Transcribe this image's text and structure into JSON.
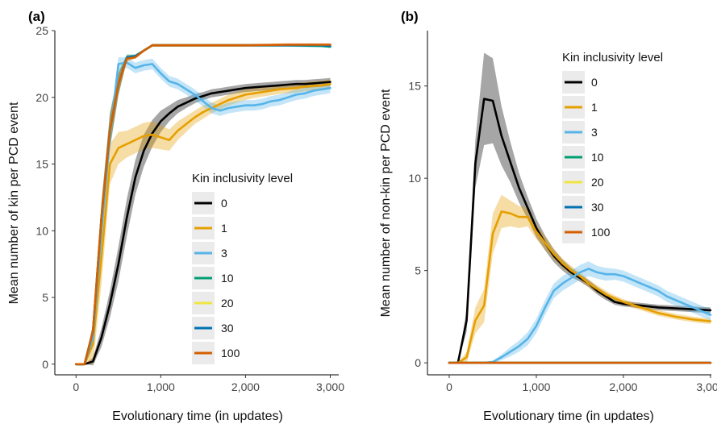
{
  "chart_data": [
    {
      "panel": "(a)",
      "type": "line",
      "xlabel": "Evolutionary time (in updates)",
      "ylabel": "Mean number of kin per PCD event",
      "xlim": [
        -250,
        3100
      ],
      "ylim": [
        -0.8,
        25
      ],
      "xticks": [
        0,
        1000,
        2000,
        3000
      ],
      "xtick_labels": [
        "0",
        "1,000",
        "2,000",
        "3,000"
      ],
      "yticks": [
        0,
        5,
        10,
        15,
        20,
        25
      ],
      "ytick_labels": [
        "0",
        "5",
        "10",
        "15",
        "20",
        "25"
      ],
      "legend": {
        "title": "Kin inclusivity level",
        "placement": "center-right"
      },
      "grid": false,
      "series": [
        {
          "name": "0",
          "color": "#000000",
          "x": [
            0,
            100,
            200,
            300,
            400,
            500,
            600,
            700,
            800,
            900,
            1000,
            1100,
            1200,
            1300,
            1400,
            1500,
            1600,
            1700,
            1800,
            1900,
            2000,
            2100,
            2200,
            2300,
            2400,
            2500,
            2600,
            2700,
            2800,
            2900,
            3000
          ],
          "y": [
            0,
            0,
            0.2,
            2,
            4.5,
            7.5,
            11,
            14,
            16,
            17.3,
            18.2,
            18.8,
            19.3,
            19.6,
            19.9,
            20.1,
            20.3,
            20.4,
            20.5,
            20.6,
            20.7,
            20.75,
            20.8,
            20.85,
            20.9,
            20.95,
            21,
            21,
            21.05,
            21.1,
            21.15
          ],
          "band": [
            0,
            0,
            0.3,
            0.7,
            1,
            1.3,
            1.4,
            1.3,
            1.2,
            1,
            0.8,
            0.6,
            0.5,
            0.4,
            0.35,
            0.3,
            0.3,
            0.3,
            0.3,
            0.3,
            0.3,
            0.3,
            0.3,
            0.3,
            0.3,
            0.3,
            0.3,
            0.3,
            0.3,
            0.3,
            0.3
          ]
        },
        {
          "name": "1",
          "color": "#E69F00",
          "x": [
            0,
            100,
            200,
            300,
            400,
            500,
            600,
            700,
            800,
            900,
            1000,
            1100,
            1200,
            1300,
            1400,
            1500,
            1600,
            1700,
            1800,
            1900,
            2000,
            2100,
            2200,
            2300,
            2400,
            2500,
            2600,
            2700,
            2800,
            2900,
            3000
          ],
          "y": [
            0,
            0,
            1.5,
            8,
            15,
            16.2,
            16.5,
            16.8,
            17.1,
            17.2,
            17,
            16.8,
            17.5,
            18,
            18.5,
            18.9,
            19.2,
            19.5,
            19.8,
            20,
            20.2,
            20.3,
            20.4,
            20.5,
            20.6,
            20.65,
            20.7,
            20.8,
            20.85,
            20.9,
            21
          ],
          "band": [
            0,
            0,
            1.5,
            2,
            1.5,
            1.2,
            1,
            1,
            1,
            1,
            0.9,
            0.8,
            0.7,
            0.6,
            0.5,
            0.5,
            0.4,
            0.4,
            0.4,
            0.4,
            0.4,
            0.35,
            0.35,
            0.35,
            0.35,
            0.35,
            0.35,
            0.35,
            0.35,
            0.35,
            0.35
          ]
        },
        {
          "name": "3",
          "color": "#56B4E9",
          "x": [
            0,
            100,
            200,
            300,
            400,
            500,
            600,
            700,
            800,
            900,
            1000,
            1100,
            1200,
            1300,
            1400,
            1500,
            1600,
            1700,
            1800,
            1900,
            2000,
            2100,
            2200,
            2300,
            2400,
            2500,
            2600,
            2700,
            2800,
            2900,
            3000
          ],
          "y": [
            0,
            0,
            2,
            10,
            17,
            22.5,
            22.6,
            22.2,
            22.4,
            22.5,
            21.8,
            21.2,
            21,
            20.6,
            20.2,
            19.7,
            19.2,
            19,
            19.2,
            19.3,
            19.4,
            19.4,
            19.5,
            19.7,
            19.8,
            20,
            20.2,
            20.3,
            20.5,
            20.6,
            20.7
          ],
          "band": [
            0,
            0,
            0.6,
            1,
            0.8,
            0.5,
            0.4,
            0.4,
            0.4,
            0.4,
            0.4,
            0.4,
            0.4,
            0.4,
            0.4,
            0.4,
            0.4,
            0.4,
            0.4,
            0.4,
            0.4,
            0.4,
            0.4,
            0.4,
            0.4,
            0.4,
            0.4,
            0.4,
            0.4,
            0.4,
            0.4
          ]
        },
        {
          "name": "10",
          "color": "#009E73",
          "x": [
            0,
            100,
            200,
            300,
            400,
            500,
            600,
            700,
            800,
            900,
            1000,
            1500,
            2000,
            2500,
            2900,
            3000
          ],
          "y": [
            0,
            0,
            2.5,
            11,
            17.5,
            21,
            23,
            23.1,
            23.5,
            23.9,
            23.9,
            23.9,
            23.9,
            23.9,
            23.85,
            23.8
          ],
          "band": [
            0,
            0,
            0.5,
            1.2,
            1.4,
            0.9,
            0.2,
            0.1,
            0.1,
            0.1,
            0.1,
            0.1,
            0.1,
            0.1,
            0.1,
            0.1
          ]
        },
        {
          "name": "20",
          "color": "#F0E442",
          "x": [
            0,
            100,
            200,
            300,
            400,
            500,
            600,
            700,
            800,
            900,
            1000,
            1500,
            2000,
            2500,
            2900,
            3000
          ],
          "y": [
            0,
            0,
            2.5,
            11,
            17.5,
            21,
            23,
            23.1,
            23.5,
            23.9,
            23.9,
            23.9,
            23.9,
            23.9,
            23.9,
            23.9
          ],
          "band": [
            0,
            0,
            0.5,
            1,
            1.2,
            0.8,
            0.2,
            0.1,
            0.1,
            0.1,
            0.1,
            0.1,
            0.1,
            0.1,
            0.1,
            0.1
          ]
        },
        {
          "name": "30",
          "color": "#0072B2",
          "x": [
            0,
            100,
            200,
            300,
            400,
            500,
            600,
            700,
            800,
            900,
            1000,
            1500,
            2000,
            2500,
            2900,
            3000
          ],
          "y": [
            0,
            0,
            2.5,
            11,
            17.5,
            21,
            23,
            23.1,
            23.5,
            23.9,
            23.9,
            23.9,
            23.9,
            23.9,
            23.9,
            23.85
          ],
          "band": [
            0,
            0,
            0.5,
            1,
            1.2,
            0.8,
            0.2,
            0.1,
            0.1,
            0.1,
            0.1,
            0.1,
            0.1,
            0.1,
            0.1,
            0.1
          ]
        },
        {
          "name": "100",
          "color": "#D55E00",
          "x": [
            0,
            100,
            200,
            300,
            400,
            500,
            600,
            700,
            800,
            900,
            1000,
            1500,
            2000,
            2500,
            2900,
            3000
          ],
          "y": [
            0,
            0,
            2.5,
            11,
            17.5,
            21,
            22.9,
            23,
            23.5,
            23.9,
            23.9,
            23.9,
            23.9,
            23.95,
            23.95,
            23.95
          ],
          "band": [
            0,
            0,
            0.5,
            1,
            1.2,
            0.8,
            0.2,
            0.1,
            0.1,
            0.1,
            0.1,
            0.1,
            0.1,
            0.1,
            0.1,
            0.1
          ]
        }
      ]
    },
    {
      "panel": "(b)",
      "type": "line",
      "xlabel": "Evolutionary time (in updates)",
      "ylabel": "Mean number of non-kin per PCD event",
      "xlim": [
        -250,
        3010
      ],
      "ylim": [
        -0.65,
        18
      ],
      "xticks": [
        0,
        1000,
        2000,
        3000
      ],
      "xtick_labels": [
        "0",
        "1,000",
        "2,000",
        "3,000"
      ],
      "yticks": [
        0,
        5,
        10,
        15
      ],
      "ytick_labels": [
        "0",
        "5",
        "10",
        "15"
      ],
      "legend": {
        "title": "Kin inclusivity level",
        "placement": "top-right"
      },
      "grid": false,
      "series": [
        {
          "name": "0",
          "color": "#000000",
          "x": [
            0,
            100,
            200,
            300,
            400,
            500,
            600,
            700,
            800,
            900,
            1000,
            1100,
            1200,
            1300,
            1400,
            1500,
            1600,
            1700,
            1800,
            1900,
            2000,
            2200,
            2400,
            2600,
            2800,
            3000
          ],
          "y": [
            0,
            0,
            2.3,
            10.8,
            14.3,
            14.2,
            12.3,
            10.9,
            9.5,
            8.4,
            7.3,
            6.5,
            5.8,
            5.3,
            4.9,
            4.6,
            4.3,
            3.9,
            3.6,
            3.3,
            3.2,
            3.1,
            3,
            2.95,
            2.9,
            2.85
          ],
          "band": [
            0,
            0,
            0.6,
            1.3,
            2.5,
            2.3,
            1.6,
            1.1,
            0.8,
            0.6,
            0.5,
            0.4,
            0.35,
            0.3,
            0.25,
            0.2,
            0.2,
            0.2,
            0.2,
            0.15,
            0.15,
            0.15,
            0.15,
            0.15,
            0.15,
            0.15
          ]
        },
        {
          "name": "1",
          "color": "#E69F00",
          "x": [
            0,
            100,
            200,
            300,
            400,
            500,
            600,
            700,
            800,
            900,
            1000,
            1100,
            1200,
            1300,
            1400,
            1500,
            1600,
            1700,
            1800,
            1900,
            2000,
            2200,
            2400,
            2600,
            2800,
            3000
          ],
          "y": [
            0,
            0,
            0.3,
            2.3,
            3.1,
            7,
            8.2,
            8.1,
            7.9,
            7.9,
            7.1,
            6.5,
            5.9,
            5.4,
            5,
            4.7,
            4.3,
            4,
            3.7,
            3.5,
            3.3,
            3,
            2.7,
            2.5,
            2.35,
            2.25
          ],
          "band": [
            0,
            0,
            0.3,
            0.7,
            0.9,
            1.1,
            0.9,
            0.7,
            0.6,
            0.5,
            0.4,
            0.35,
            0.3,
            0.25,
            0.25,
            0.2,
            0.2,
            0.2,
            0.2,
            0.15,
            0.15,
            0.15,
            0.15,
            0.15,
            0.15,
            0.15
          ]
        },
        {
          "name": "3",
          "color": "#56B4E9",
          "x": [
            0,
            100,
            200,
            300,
            400,
            500,
            600,
            700,
            800,
            900,
            1000,
            1100,
            1200,
            1300,
            1400,
            1500,
            1600,
            1700,
            1800,
            1900,
            2000,
            2100,
            2200,
            2300,
            2400,
            2500,
            2600,
            2700,
            2800,
            2900,
            3000
          ],
          "y": [
            0,
            0,
            0,
            0,
            0,
            0.05,
            0.3,
            0.6,
            0.9,
            1.3,
            2,
            3,
            3.9,
            4.3,
            4.6,
            4.9,
            5.1,
            4.9,
            4.8,
            4.8,
            4.7,
            4.5,
            4.3,
            4.1,
            3.9,
            3.6,
            3.4,
            3.2,
            3,
            2.8,
            2.6
          ],
          "band": [
            0,
            0,
            0,
            0,
            0,
            0.05,
            0.15,
            0.25,
            0.3,
            0.35,
            0.4,
            0.4,
            0.4,
            0.4,
            0.4,
            0.4,
            0.4,
            0.35,
            0.35,
            0.3,
            0.3,
            0.3,
            0.3,
            0.3,
            0.3,
            0.3,
            0.3,
            0.3,
            0.3,
            0.3,
            0.3
          ]
        },
        {
          "name": "10",
          "color": "#009E73",
          "x": [
            0,
            3000
          ],
          "y": [
            0,
            0
          ],
          "band": [
            0,
            0
          ]
        },
        {
          "name": "20",
          "color": "#F0E442",
          "x": [
            0,
            3000
          ],
          "y": [
            0,
            0
          ],
          "band": [
            0,
            0
          ]
        },
        {
          "name": "30",
          "color": "#0072B2",
          "x": [
            0,
            3000
          ],
          "y": [
            0,
            0
          ],
          "band": [
            0,
            0
          ]
        },
        {
          "name": "100",
          "color": "#D55E00",
          "x": [
            0,
            3000
          ],
          "y": [
            0,
            0
          ],
          "band": [
            0,
            0
          ]
        }
      ]
    }
  ]
}
